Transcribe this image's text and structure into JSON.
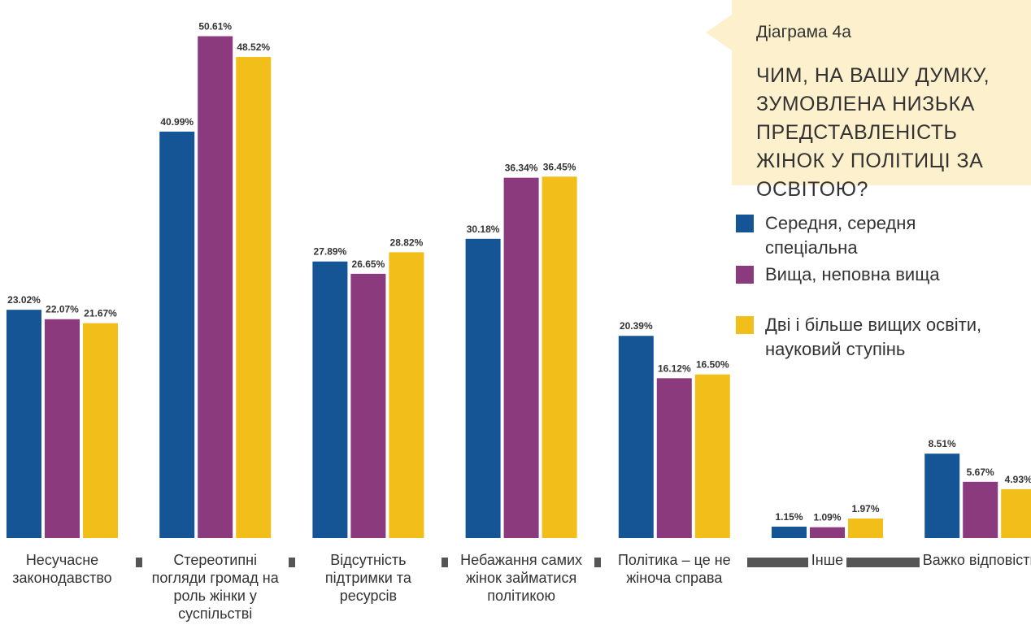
{
  "chart_data": {
    "type": "bar",
    "subtitle": "Діаграма 4а",
    "title": "ЧИМ, НА ВАШУ ДУМКУ, ЗУМОВЛЕНА НИЗЬКА ПРЕДСТАВЛЕНІСТЬ ЖІНОК У ПОЛІТИЦІ ЗА ОСВІТОЮ?",
    "categories": [
      "Несучасне законодавство",
      "Стереотипні погляди громад на роль жінки у суспільстві",
      "Відсутність підтримки та ресурсів",
      "Небажання самих жінок займатися політикою",
      "Політика – це не жіноча справа",
      "Інше",
      "Важко відповісти"
    ],
    "series": [
      {
        "name": "Середня, середня спеціальна",
        "color": "#155596",
        "values": [
          23.02,
          40.99,
          27.89,
          30.18,
          20.39,
          1.15,
          8.51
        ],
        "value_labels": [
          "23.02%",
          "40.99%",
          "27.89%",
          "30.18%",
          "20.39%",
          "1.15%",
          "8.51%"
        ]
      },
      {
        "name": "Вища, неповна вища",
        "color": "#8b3a7e",
        "values": [
          22.07,
          50.61,
          26.65,
          36.34,
          16.12,
          1.09,
          5.67
        ],
        "value_labels": [
          "22.07%",
          "50.61%",
          "26.65%",
          "36.34%",
          "16.12%",
          "1.09%",
          "5.67%"
        ]
      },
      {
        "name": "Дві і більше вищих освіти, науковий ступінь",
        "color": "#f1be1a",
        "values": [
          21.67,
          48.52,
          28.82,
          36.45,
          16.5,
          1.97,
          4.93
        ],
        "value_labels": [
          "21.67%",
          "48.52%",
          "28.82%",
          "36.45%",
          "16.50%",
          "1.97%",
          "4.93%"
        ]
      }
    ],
    "legend": "right"
  }
}
